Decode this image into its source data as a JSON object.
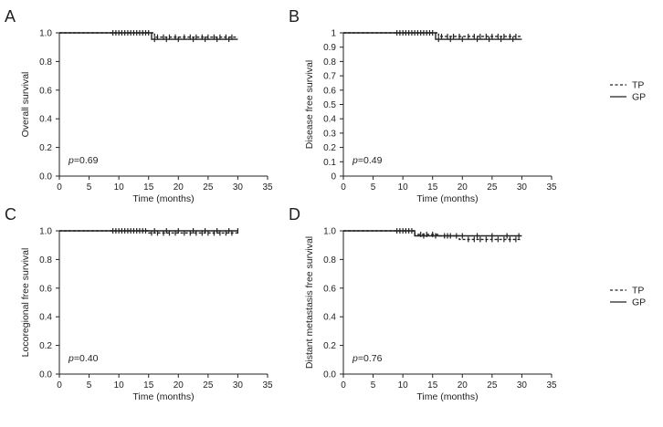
{
  "legend_top": [
    {
      "label": "TP",
      "style": "dashed"
    },
    {
      "label": "GP",
      "style": "solid"
    }
  ],
  "legend_bottom": [
    {
      "label": "TP",
      "style": "dashed"
    },
    {
      "label": "GP",
      "style": "solid"
    }
  ],
  "chart_data": [
    {
      "panel": "A",
      "type": "line",
      "step": true,
      "ylabel": "Overall survival",
      "xlabel": "Time (months)",
      "xlim": [
        0,
        35
      ],
      "ylim": [
        0,
        1
      ],
      "xticks": [
        0,
        5,
        10,
        15,
        20,
        25,
        30,
        35
      ],
      "yticks": [
        0.0,
        0.2,
        0.4,
        0.6,
        0.8,
        1.0
      ],
      "ytick_labels": [
        "0.0",
        "0.2",
        "0.4",
        "0.6",
        "0.8",
        "1.0"
      ],
      "p_value": "0.69",
      "series": [
        {
          "name": "TP",
          "style": "dashed",
          "x": [
            0,
            16,
            30
          ],
          "y": [
            1.0,
            0.97,
            0.97
          ],
          "censored": [
            9,
            10,
            11,
            12,
            13,
            14,
            15,
            16.5,
            17.5,
            18.5,
            19.5,
            21,
            22,
            23,
            24,
            25,
            26,
            27,
            28,
            29
          ]
        },
        {
          "name": "GP",
          "style": "solid",
          "x": [
            0,
            15.5,
            30
          ],
          "y": [
            1.0,
            0.955,
            0.955
          ],
          "censored": [
            9.5,
            10.5,
            11.5,
            12.5,
            13.5,
            14.5,
            16,
            18,
            20,
            22.5,
            24.5,
            26.5,
            28.5
          ]
        }
      ]
    },
    {
      "panel": "B",
      "type": "line",
      "step": true,
      "ylabel": "Disease free survival",
      "xlabel": "Time (months)",
      "xlim": [
        0,
        35
      ],
      "ylim": [
        0,
        1
      ],
      "xticks": [
        0,
        5,
        10,
        15,
        20,
        25,
        30,
        35
      ],
      "yticks": [
        0.0,
        0.1,
        0.2,
        0.3,
        0.4,
        0.5,
        0.6,
        0.7,
        0.8,
        0.9,
        1.0
      ],
      "ytick_labels": [
        "0",
        "0.1",
        "0.2",
        "0.3",
        "0.4",
        "0.5",
        "0.6",
        "0.7",
        "0.8",
        "0.9",
        "1"
      ],
      "p_value": "0.49",
      "series": [
        {
          "name": "TP",
          "style": "dashed",
          "x": [
            0,
            16,
            30
          ],
          "y": [
            1.0,
            0.975,
            0.975
          ],
          "censored": [
            9,
            10,
            11,
            12,
            13,
            14,
            15,
            16.5,
            17.5,
            18.5,
            19.5,
            21,
            22,
            23,
            24,
            25,
            26,
            27,
            28,
            29
          ]
        },
        {
          "name": "GP",
          "style": "solid",
          "x": [
            0,
            15.5,
            30
          ],
          "y": [
            1.0,
            0.955,
            0.955
          ],
          "censored": [
            9.5,
            10.5,
            11.5,
            12.5,
            13.5,
            14.5,
            16,
            18,
            20,
            22.5,
            24.5,
            26.5,
            28.5
          ]
        }
      ]
    },
    {
      "panel": "C",
      "type": "line",
      "step": true,
      "ylabel": "Locoregional free survival",
      "xlabel": "Time (months)",
      "xlim": [
        0,
        35
      ],
      "ylim": [
        0,
        1
      ],
      "xticks": [
        0,
        5,
        10,
        15,
        20,
        25,
        30,
        35
      ],
      "yticks": [
        0.0,
        0.2,
        0.4,
        0.6,
        0.8,
        1.0
      ],
      "ytick_labels": [
        "0.0",
        "0.2",
        "0.4",
        "0.6",
        "0.8",
        "1.0"
      ],
      "p_value": "0.40",
      "series": [
        {
          "name": "TP",
          "style": "dashed",
          "x": [
            0,
            15,
            30
          ],
          "y": [
            1.0,
            0.985,
            0.985
          ],
          "censored": [
            9,
            10,
            11,
            12,
            13,
            14,
            15.5,
            16.5,
            17.5,
            18.5,
            19.5,
            21,
            22,
            23,
            24,
            25,
            26,
            27,
            28,
            29
          ]
        },
        {
          "name": "GP",
          "style": "solid",
          "x": [
            0,
            30
          ],
          "y": [
            1.0,
            1.0
          ],
          "censored": [
            9.5,
            10.5,
            11.5,
            12.5,
            13.5,
            14.5,
            16,
            18,
            20,
            22.5,
            24.5,
            26.5,
            28.5,
            30
          ]
        }
      ]
    },
    {
      "panel": "D",
      "type": "line",
      "step": true,
      "ylabel": "Distant metastasis free survival",
      "xlabel": "Time (months)",
      "xlim": [
        0,
        35
      ],
      "ylim": [
        0,
        1
      ],
      "xticks": [
        0,
        5,
        10,
        15,
        20,
        25,
        30,
        35
      ],
      "yticks": [
        0.0,
        0.2,
        0.4,
        0.6,
        0.8,
        1.0
      ],
      "ytick_labels": [
        "0.0",
        "0.2",
        "0.4",
        "0.6",
        "0.8",
        "1.0"
      ],
      "p_value": "0.76",
      "series": [
        {
          "name": "TP",
          "style": "dashed",
          "x": [
            0,
            12,
            16,
            19.5,
            30
          ],
          "y": [
            1.0,
            0.975,
            0.965,
            0.94,
            0.94
          ],
          "censored": [
            9,
            10,
            11,
            13,
            14,
            15,
            17,
            18,
            19,
            21,
            22,
            23,
            24,
            25,
            26,
            27,
            28,
            29
          ]
        },
        {
          "name": "GP",
          "style": "solid",
          "x": [
            0,
            12,
            30
          ],
          "y": [
            1.0,
            0.965,
            0.965
          ],
          "censored": [
            9.5,
            10.5,
            11.5,
            13.5,
            15.5,
            17.5,
            20,
            22.5,
            25,
            27.5,
            29.5
          ]
        }
      ]
    }
  ]
}
